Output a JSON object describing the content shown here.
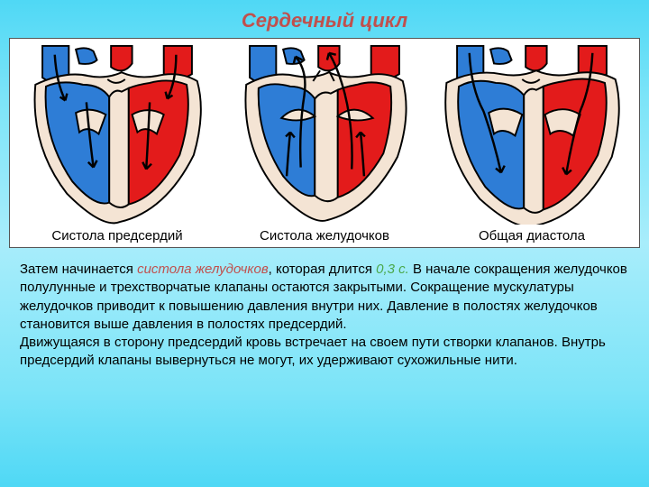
{
  "title": {
    "text": "Сердечный цикл",
    "color": "#c0504d",
    "fontsize": 22
  },
  "diagram": {
    "frame_bg": "#ffffff",
    "outline": "#000000",
    "outline_width": 2,
    "colors": {
      "venous": "#2e7dd6",
      "venous_dark": "#1f5fa8",
      "arterial": "#e31b1b",
      "arterial_dark": "#a31212",
      "myocardium": "#f4e4d4",
      "septum": "#f4e4d4",
      "arrow": "#000000"
    },
    "panels": [
      {
        "caption": "Систола предсердий"
      },
      {
        "caption": "Систола желудочков"
      },
      {
        "caption": "Общая диастола"
      }
    ],
    "caption_fontsize": 15
  },
  "paragraph": {
    "fontsize": 15,
    "parts": [
      {
        "t": "Затем начинается ",
        "style": "plain"
      },
      {
        "t": "систола желудочков",
        "style": "red"
      },
      {
        "t": ", которая длится ",
        "style": "plain"
      },
      {
        "t": "0,3 с.",
        "style": "green"
      },
      {
        "t": " В начале сокращения желудочков полулунные и трехстворчатые клапаны остаются закрытыми. Сокращение мускулатуры желудочков приводит к повышению давления внутри них. Давление в полостях желудочков становится выше давления в полостях предсердий.",
        "style": "plain"
      },
      {
        "t": "\n",
        "style": "break"
      },
      {
        "t": "Движущаяся в сторону предсердий кровь встречает на своем пути створки клапанов. Внутрь предсердий клапаны вывернуться не могут, их удерживают сухожильные нити.",
        "style": "plain"
      }
    ]
  }
}
